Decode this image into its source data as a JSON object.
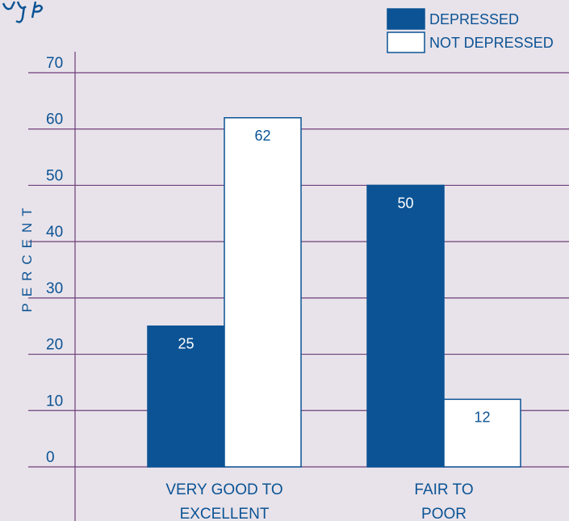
{
  "colors": {
    "background": "#e8e3ea",
    "depressed": "#0b5394",
    "not_depressed": "#ffffff",
    "gridline": "#6e3f7b",
    "label_text": "#0b5394",
    "bar_border": "#0b5394",
    "title_accent": "#0b5394"
  },
  "chart_data": {
    "type": "bar",
    "categories": [
      "VERY GOOD TO EXCELLENT",
      "FAIR TO POOR"
    ],
    "category_lines": [
      [
        "VERY GOOD TO",
        "EXCELLENT"
      ],
      [
        "FAIR TO",
        "POOR"
      ]
    ],
    "series": [
      {
        "name": "DEPRESSED",
        "values": [
          25,
          50
        ],
        "data_labels": [
          "25",
          "50"
        ]
      },
      {
        "name": "NOT DEPRESSED",
        "values": [
          62,
          12
        ],
        "data_labels": [
          "62",
          "12"
        ]
      }
    ],
    "ylabel": "PERCENT",
    "xlabel": "",
    "ylim": [
      0,
      70
    ],
    "yticks": [
      0,
      10,
      20,
      30,
      40,
      50,
      60,
      70
    ],
    "ytick_labels": [
      "0",
      "10",
      "20",
      "30",
      "40",
      "50",
      "60",
      "70"
    ],
    "grid": true,
    "legend_position": "top-right"
  }
}
